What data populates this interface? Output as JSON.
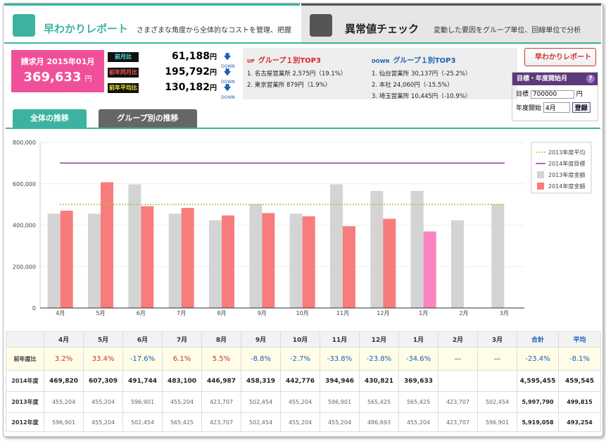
{
  "tabs": [
    {
      "title": "早わかりレポート",
      "description": "さまざまな角度から全体的なコストを管理、把握"
    },
    {
      "title": "異常値チェック",
      "description": "変動した要因をグループ単位、回線単位で分析"
    }
  ],
  "summary": {
    "month_label": "請求月 2015年01月",
    "amount": "369,633",
    "unit": "円",
    "comparisons": [
      {
        "label": "前月比",
        "value": "61,188",
        "unit": "円",
        "direction": "DOWN"
      },
      {
        "label": "前年同月比",
        "value": "195,792",
        "unit": "円",
        "direction": "DOWN"
      },
      {
        "label": "前年平均比",
        "value": "130,182",
        "unit": "円",
        "direction": "DOWN"
      }
    ]
  },
  "top3": [
    {
      "direction": "UP",
      "title": "グループ１別TOP3",
      "items": [
        "1. 名古屋営業所 2,575円（19.1%）",
        "2. 東京営業所 879円（1.9%）"
      ]
    },
    {
      "direction": "DOWN",
      "title": "グループ１別TOP3",
      "items": [
        "1. 仙台営業所 30,137円（-25.2%）",
        "2. 本社 24,060円（-15.5%）",
        "3. 埼玉営業所 10,445円（-10.9%）"
      ]
    }
  ],
  "report_button": "早わかりレポート",
  "settings": {
    "title": "目標・年度開始月",
    "help": "?",
    "target_label": "目標",
    "target_value": "700000",
    "target_unit": "円",
    "start_label": "年度開始",
    "start_value": "4月",
    "submit": "登録"
  },
  "subtabs": [
    "全体の推移",
    "グループ別の推移"
  ],
  "chart_data": {
    "type": "bar",
    "categories": [
      "4月",
      "5月",
      "6月",
      "7月",
      "8月",
      "9月",
      "10月",
      "11月",
      "12月",
      "1月",
      "2月",
      "3月"
    ],
    "series": [
      {
        "name": "2013年度金額",
        "color": "#d4d4d4",
        "values": [
          455204,
          455204,
          596901,
          455204,
          423707,
          502454,
          455204,
          596901,
          565425,
          565425,
          423707,
          502454
        ]
      },
      {
        "name": "2014年度金額",
        "color": "#f87c7c",
        "values": [
          469820,
          607309,
          491744,
          483100,
          446987,
          458319,
          442776,
          394946,
          430821,
          369633,
          null,
          null
        ],
        "highlight": {
          "index": 9,
          "color": "#f885bf"
        }
      }
    ],
    "lines": [
      {
        "name": "2013年度平均",
        "value": 499815,
        "color": "#9acd32",
        "style": "dotted"
      },
      {
        "name": "2014年度目標",
        "value": 700000,
        "color": "#8e3a9e",
        "style": "solid"
      }
    ],
    "ylim": [
      0,
      800000
    ],
    "yticks": [
      0,
      {
        "value": 200000,
        "label": "200,000"
      },
      {
        "value": 400000,
        "label": "400,000"
      },
      {
        "value": 600000,
        "label": "600,000"
      },
      {
        "value": 800000,
        "label": "800,000"
      }
    ],
    "grid": true,
    "legend": "upper right"
  },
  "table": {
    "header": [
      "4月",
      "5月",
      "6月",
      "7月",
      "8月",
      "9月",
      "10月",
      "11月",
      "12月",
      "1月",
      "2月",
      "3月",
      "合計",
      "平均"
    ],
    "rows": [
      {
        "label": "前年度比",
        "cells": [
          "3.2%",
          "33.4%",
          "-17.6%",
          "6.1%",
          "5.5%",
          "-8.8%",
          "-2.7%",
          "-33.8%",
          "-23.8%",
          "-34.6%",
          "—",
          "—",
          "-23.4%",
          "-8.1%"
        ]
      },
      {
        "label": "2014年度",
        "cells": [
          "469,820",
          "607,309",
          "491,744",
          "483,100",
          "446,987",
          "458,319",
          "442,776",
          "394,946",
          "430,821",
          "369,633",
          null,
          null,
          "4,595,455",
          "459,545"
        ]
      },
      {
        "label": "2013年度",
        "cells": [
          "455,204",
          "455,204",
          "596,901",
          "455,204",
          "423,707",
          "502,454",
          "455,204",
          "596,901",
          "565,425",
          "565,425",
          "423,707",
          "502,454",
          "5,997,790",
          "499,815"
        ]
      },
      {
        "label": "2012年度",
        "cells": [
          "596,901",
          "455,204",
          "502,454",
          "565,425",
          "423,707",
          "502,454",
          "455,204",
          "455,204",
          "486,693",
          "455,204",
          "423,707",
          "596,901",
          "5,919,058",
          "493,254"
        ]
      }
    ]
  }
}
